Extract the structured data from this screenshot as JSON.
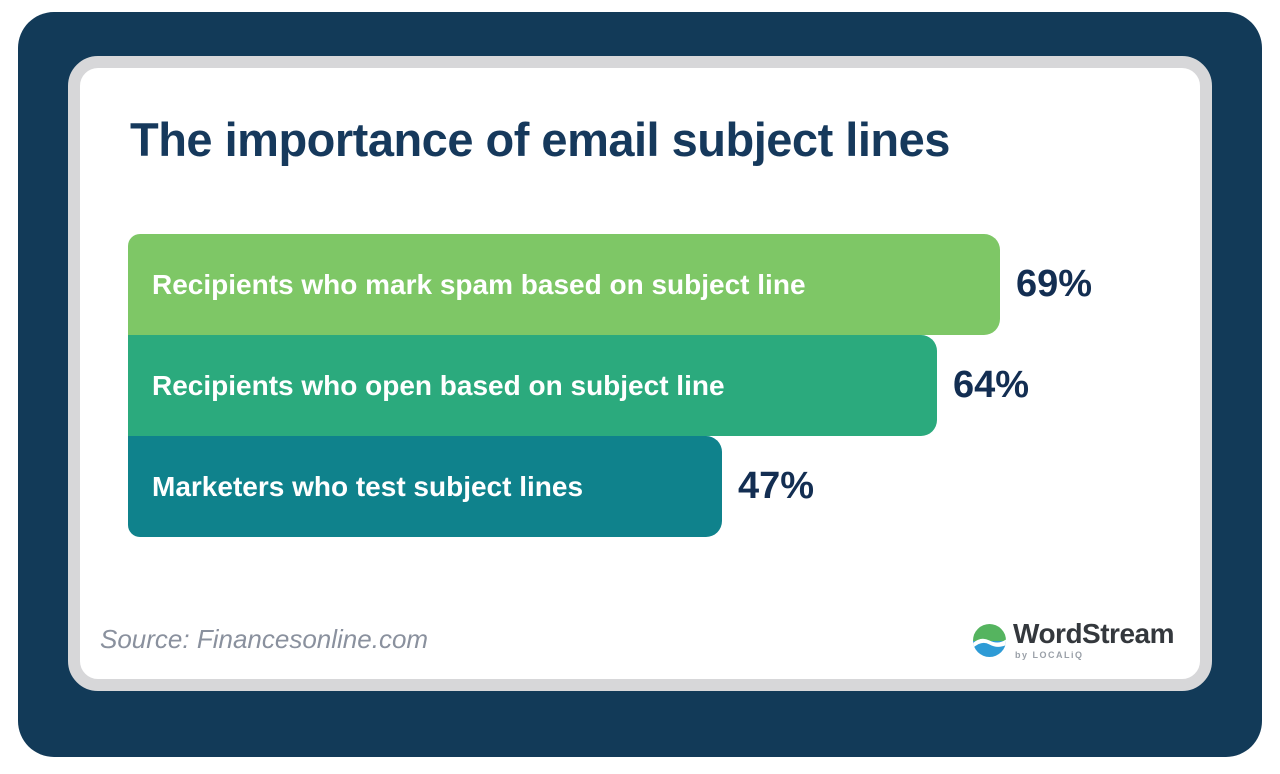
{
  "chart_data": {
    "type": "bar",
    "orientation": "horizontal",
    "title": "The importance of email subject lines",
    "categories": [
      "Recipients who mark spam based on subject line",
      "Recipients who open based on subject line",
      "Marketers who test subject lines"
    ],
    "values": [
      69,
      64,
      47
    ],
    "value_labels": [
      "69%",
      "64%",
      "47%"
    ],
    "bar_colors": [
      "#7ec766",
      "#2baa7d",
      "#0f828c"
    ],
    "xlim": [
      0,
      100
    ],
    "value_label_position": "right-of-bar",
    "grid": false,
    "legend": false
  },
  "source_text": "Source: Financesonline.com",
  "brand": {
    "name": "WordStream",
    "byline": "by LOCALiQ",
    "icon": "wave-globe-icon"
  },
  "colors": {
    "frame_navy": "#123a58",
    "card_border": "#d7d7d9",
    "title_text": "#16395c",
    "value_text": "#132e52",
    "bar_label_text": "#ffffff",
    "source_text": "#8a919e",
    "logo_green": "#55b45f",
    "logo_blue": "#2e9bd6"
  }
}
